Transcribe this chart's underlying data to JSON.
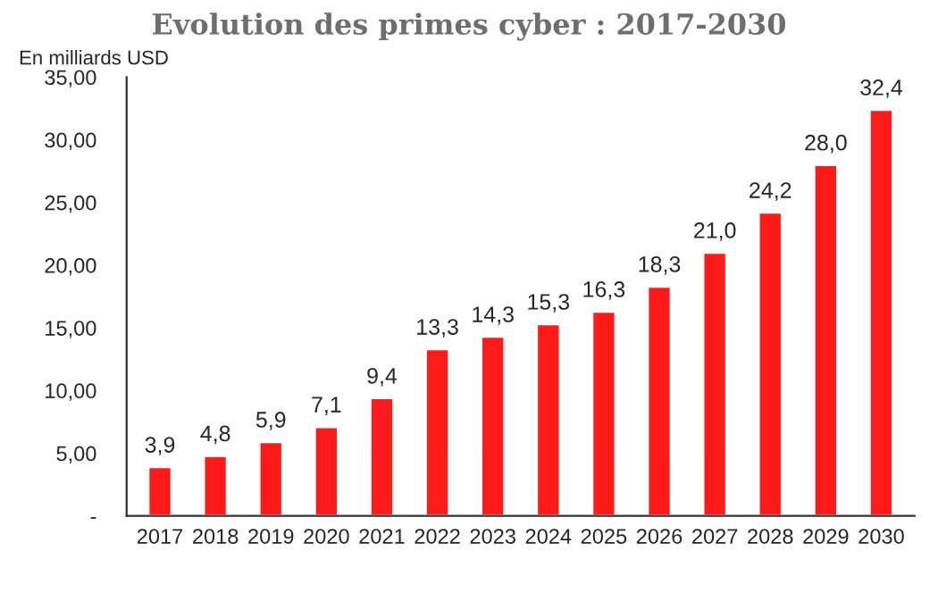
{
  "chart_data": {
    "type": "bar",
    "title": "Evolution des primes cyber : 2017-2030",
    "ylabel": "En milliards USD",
    "categories": [
      "2017",
      "2018",
      "2019",
      "2020",
      "2021",
      "2022",
      "2023",
      "2024",
      "2025",
      "2026",
      "2027",
      "2028",
      "2029",
      "2030"
    ],
    "values": [
      3.9,
      4.8,
      5.9,
      7.1,
      9.4,
      13.3,
      14.3,
      15.3,
      16.3,
      18.3,
      21.0,
      24.2,
      28.0,
      32.4
    ],
    "value_labels": [
      "3,9",
      "4,8",
      "5,9",
      "7,1",
      "9,4",
      "13,3",
      "14,3",
      "15,3",
      "16,3",
      "18,3",
      "21,0",
      "24,2",
      "28,0",
      "32,4"
    ],
    "color": "#ff1a1a",
    "ylim": [
      0,
      35
    ],
    "yticks": [
      {
        "value": 0,
        "label": "-"
      },
      {
        "value": 5,
        "label": "5,00"
      },
      {
        "value": 10,
        "label": "10,00"
      },
      {
        "value": 15,
        "label": "15,00"
      },
      {
        "value": 20,
        "label": "20,00"
      },
      {
        "value": 25,
        "label": "25,00"
      },
      {
        "value": 30,
        "label": "30,00"
      },
      {
        "value": 35,
        "label": "35,00"
      }
    ],
    "grid": false,
    "legend": false
  }
}
